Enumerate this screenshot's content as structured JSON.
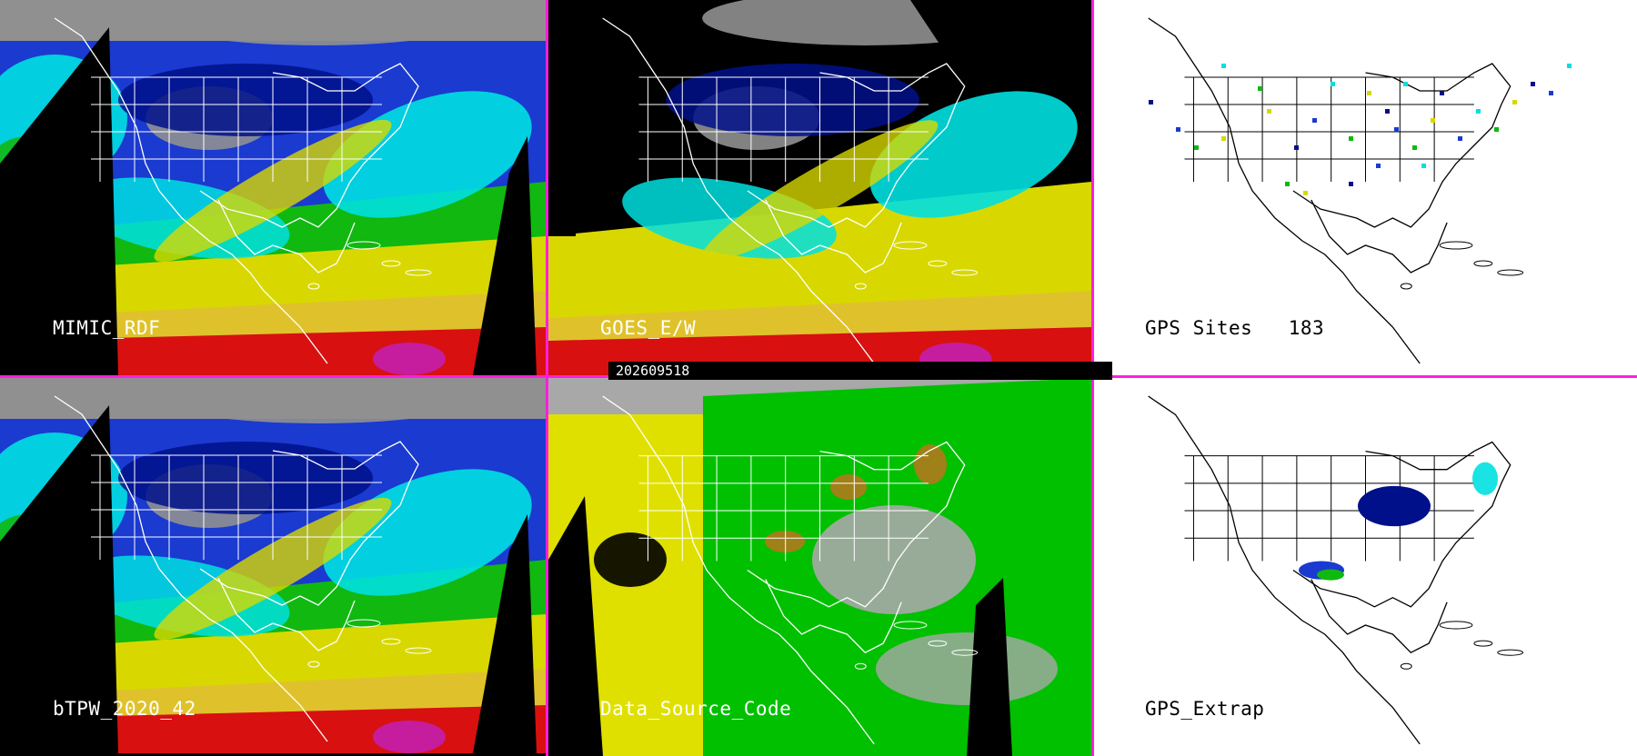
{
  "timestamp": "202609518",
  "colors": {
    "divider": "#ff1edc",
    "tpw_scale": [
      "#000000",
      "#909090",
      "#00108a",
      "#1a3ad0",
      "#00e0e0",
      "#10b810",
      "#d8d800",
      "#e0c030",
      "#d81010",
      "#c020c0"
    ],
    "data_source_codes": [
      "#a8a8a8",
      "#e0e000",
      "#00c000",
      "#a08018",
      "#000000"
    ]
  },
  "panels": [
    {
      "id": "mimic",
      "label": "MIMIC_RDF",
      "style": "tpw"
    },
    {
      "id": "goes",
      "label": "GOES_E/W",
      "style": "tpw-goes"
    },
    {
      "id": "gps-sites",
      "label": "GPS Sites   183",
      "style": "map-white"
    },
    {
      "id": "btpw",
      "label": "bTPW_2020_42",
      "style": "tpw"
    },
    {
      "id": "data-source",
      "label": "Data_Source_Code",
      "style": "source"
    },
    {
      "id": "gps-extrap",
      "label": "GPS_Extrap",
      "style": "map-white"
    }
  ]
}
